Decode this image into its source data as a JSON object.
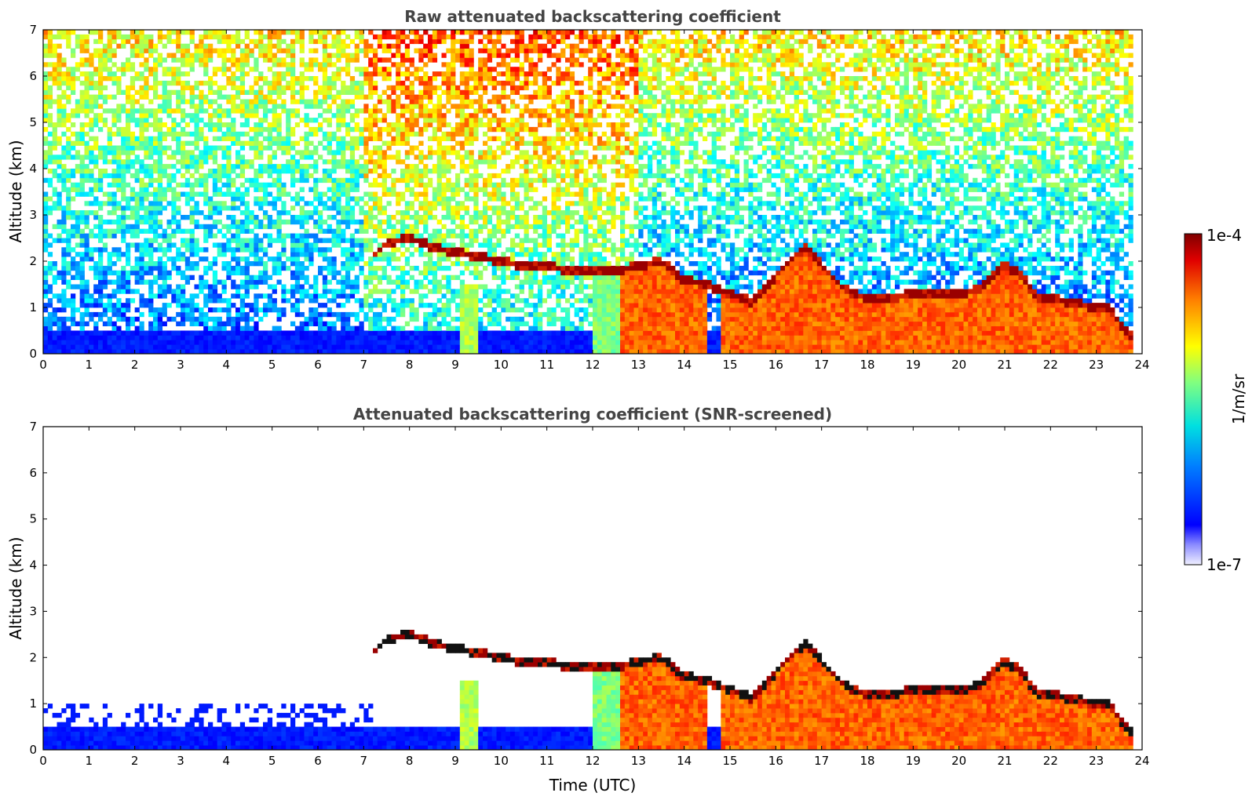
{
  "chart_data": [
    {
      "type": "heatmap",
      "title": "Raw attenuated backscattering coefficient",
      "xlabel": "",
      "ylabel": "Altitude (km)",
      "xlim": [
        0,
        24
      ],
      "ylim": [
        0,
        7
      ],
      "xticks": [
        "0",
        "1",
        "2",
        "3",
        "4",
        "5",
        "6",
        "7",
        "8",
        "9",
        "10",
        "11",
        "12",
        "13",
        "14",
        "15",
        "16",
        "17",
        "18",
        "19",
        "20",
        "21",
        "22",
        "23",
        "24"
      ],
      "yticks": [
        "0",
        "1",
        "2",
        "3",
        "4",
        "5",
        "6",
        "7"
      ],
      "colorscale": "jet",
      "screened": false,
      "data_end_time": 23.8,
      "cloud_layer": {
        "time": [
          7.2,
          7.5,
          8.0,
          8.5,
          9.0,
          9.5,
          10.0,
          10.5,
          11.0,
          11.5,
          12.0,
          12.5,
          13.0,
          13.5,
          14.0,
          14.5,
          15.0,
          15.5,
          16.0,
          16.5,
          16.7,
          17.0,
          17.5,
          18.0,
          18.5,
          19.0,
          19.5,
          20.0,
          20.5,
          20.9,
          21.3,
          21.7,
          22.0,
          22.5,
          23.0,
          23.3,
          23.6,
          23.8
        ],
        "top_km": [
          2.1,
          2.4,
          2.5,
          2.3,
          2.2,
          2.1,
          2.0,
          1.9,
          1.9,
          1.8,
          1.8,
          1.8,
          1.9,
          2.0,
          1.6,
          1.5,
          1.3,
          1.1,
          1.7,
          2.2,
          2.3,
          1.9,
          1.4,
          1.2,
          1.2,
          1.3,
          1.3,
          1.3,
          1.4,
          1.9,
          1.8,
          1.2,
          1.2,
          1.1,
          1.0,
          1.0,
          0.5,
          0.4
        ]
      },
      "low_cloud_start_time": 12.0
    },
    {
      "type": "heatmap",
      "title": "Attenuated backscattering coefficient (SNR-screened)",
      "xlabel": "Time (UTC)",
      "ylabel": "Altitude (km)",
      "xlim": [
        0,
        24
      ],
      "ylim": [
        0,
        7
      ],
      "xticks": [
        "0",
        "1",
        "2",
        "3",
        "4",
        "5",
        "6",
        "7",
        "8",
        "9",
        "10",
        "11",
        "12",
        "13",
        "14",
        "15",
        "16",
        "17",
        "18",
        "19",
        "20",
        "21",
        "22",
        "23",
        "24"
      ],
      "yticks": [
        "0",
        "1",
        "2",
        "3",
        "4",
        "5",
        "6",
        "7"
      ],
      "colorscale": "jet",
      "screened": true,
      "boundary_layer_top_km": 0.65
    }
  ],
  "colorbar": {
    "label": "1/m/sr",
    "max_label": "1e-4",
    "min_label": "1e-7",
    "scale": "log",
    "range": [
      1e-07,
      0.0001
    ]
  }
}
